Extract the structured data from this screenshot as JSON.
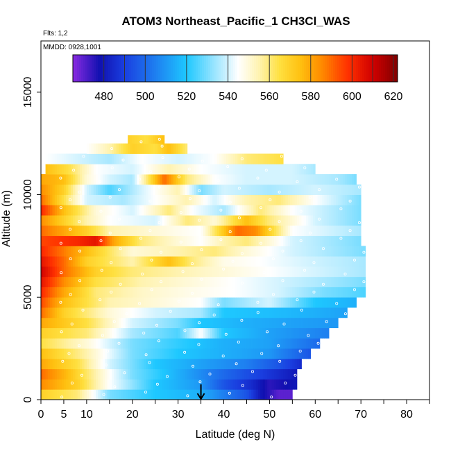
{
  "chart_data": {
    "type": "heatmap",
    "title": "ATOM3 Northeast_Pacific_1 CH3Cl_WAS",
    "annotations": {
      "flights": "Flts: 1,2",
      "dates": "MMDD: 0928,1001"
    },
    "xlabel": "Latitude (deg N)",
    "ylabel": "Altitude (m)",
    "xlim": [
      0,
      85
    ],
    "ylim": [
      0,
      17500
    ],
    "x_ticks": [
      0,
      5,
      10,
      20,
      30,
      40,
      50,
      60,
      70,
      80
    ],
    "x_minor_ticks": [
      15,
      25,
      35,
      45,
      55,
      65,
      75,
      85
    ],
    "y_ticks": [
      0,
      5000,
      10000,
      15000
    ],
    "colorbar": {
      "range": [
        465,
        622
      ],
      "ticks": [
        480,
        500,
        520,
        540,
        560,
        580,
        600,
        620
      ],
      "divisions": [
        465,
        480,
        490,
        500,
        520,
        540,
        560,
        580,
        600,
        610,
        620
      ],
      "colors": [
        {
          "v": 465,
          "c": "#8a2be2"
        },
        {
          "v": 478,
          "c": "#1010b0"
        },
        {
          "v": 490,
          "c": "#1a3fe0"
        },
        {
          "v": 505,
          "c": "#1e7ff0"
        },
        {
          "v": 520,
          "c": "#1ec8ff"
        },
        {
          "v": 535,
          "c": "#a8e8ff"
        },
        {
          "v": 545,
          "c": "#ffffff"
        },
        {
          "v": 555,
          "c": "#fff3b0"
        },
        {
          "v": 565,
          "c": "#ffe040"
        },
        {
          "v": 575,
          "c": "#ffc010"
        },
        {
          "v": 585,
          "c": "#ff8c00"
        },
        {
          "v": 598,
          "c": "#ff3000"
        },
        {
          "v": 610,
          "c": "#d00000"
        },
        {
          "v": 622,
          "c": "#800000"
        }
      ]
    },
    "marker": {
      "latitude": 35,
      "altitude": 0,
      "symbol": "down-arrow"
    },
    "layers": [
      {
        "y0": 0,
        "y1": 500,
        "lat": [
          0,
          55
        ],
        "points": [
          [
            0,
            570
          ],
          [
            8,
            560
          ],
          [
            15,
            530
          ],
          [
            25,
            520
          ],
          [
            35,
            515
          ],
          [
            40,
            505
          ],
          [
            45,
            495
          ],
          [
            48,
            480
          ],
          [
            52,
            470
          ],
          [
            55,
            470
          ]
        ]
      },
      {
        "y0": 500,
        "y1": 1000,
        "lat": [
          0,
          56
        ],
        "points": [
          [
            0,
            585
          ],
          [
            8,
            570
          ],
          [
            15,
            545
          ],
          [
            25,
            520
          ],
          [
            35,
            510
          ],
          [
            40,
            495
          ],
          [
            46,
            485
          ],
          [
            50,
            475
          ],
          [
            56,
            480
          ]
        ]
      },
      {
        "y0": 1000,
        "y1": 1500,
        "lat": [
          0,
          56
        ],
        "points": [
          [
            0,
            590
          ],
          [
            6,
            575
          ],
          [
            12,
            555
          ],
          [
            20,
            530
          ],
          [
            30,
            515
          ],
          [
            40,
            500
          ],
          [
            48,
            490
          ],
          [
            56,
            480
          ]
        ]
      },
      {
        "y0": 1500,
        "y1": 2000,
        "lat": [
          0,
          57
        ],
        "points": [
          [
            0,
            580
          ],
          [
            8,
            565
          ],
          [
            15,
            540
          ],
          [
            25,
            520
          ],
          [
            35,
            512
          ],
          [
            45,
            505
          ],
          [
            52,
            495
          ],
          [
            57,
            485
          ]
        ]
      },
      {
        "y0": 2000,
        "y1": 2500,
        "lat": [
          0,
          59
        ],
        "points": [
          [
            0,
            575
          ],
          [
            10,
            555
          ],
          [
            20,
            530
          ],
          [
            30,
            520
          ],
          [
            40,
            515
          ],
          [
            50,
            510
          ],
          [
            59,
            495
          ]
        ]
      },
      {
        "y0": 2500,
        "y1": 3000,
        "lat": [
          0,
          61
        ],
        "points": [
          [
            0,
            565
          ],
          [
            10,
            550
          ],
          [
            20,
            530
          ],
          [
            30,
            522
          ],
          [
            40,
            515
          ],
          [
            50,
            512
          ],
          [
            61,
            500
          ]
        ]
      },
      {
        "y0": 3000,
        "y1": 3500,
        "lat": [
          0,
          63
        ],
        "points": [
          [
            0,
            570
          ],
          [
            10,
            560
          ],
          [
            20,
            535
          ],
          [
            30,
            525
          ],
          [
            35,
            545
          ],
          [
            40,
            520
          ],
          [
            50,
            512
          ],
          [
            63,
            505
          ]
        ]
      },
      {
        "y0": 3500,
        "y1": 4000,
        "lat": [
          0,
          65
        ],
        "points": [
          [
            0,
            580
          ],
          [
            10,
            565
          ],
          [
            20,
            540
          ],
          [
            30,
            530
          ],
          [
            35,
            520
          ],
          [
            45,
            515
          ],
          [
            55,
            512
          ],
          [
            65,
            510
          ]
        ]
      },
      {
        "y0": 4000,
        "y1": 4500,
        "lat": [
          0,
          67
        ],
        "points": [
          [
            0,
            590
          ],
          [
            5,
            570
          ],
          [
            15,
            550
          ],
          [
            25,
            540
          ],
          [
            35,
            535
          ],
          [
            40,
            520
          ],
          [
            50,
            518
          ],
          [
            60,
            515
          ],
          [
            67,
            512
          ]
        ]
      },
      {
        "y0": 4500,
        "y1": 5000,
        "lat": [
          0,
          69
        ],
        "points": [
          [
            0,
            595
          ],
          [
            5,
            575
          ],
          [
            15,
            555
          ],
          [
            25,
            550
          ],
          [
            35,
            545
          ],
          [
            40,
            530
          ],
          [
            50,
            540
          ],
          [
            60,
            520
          ],
          [
            69,
            515
          ]
        ]
      },
      {
        "y0": 5000,
        "y1": 5500,
        "lat": [
          0,
          71
        ],
        "points": [
          [
            0,
            600
          ],
          [
            5,
            580
          ],
          [
            12,
            560
          ],
          [
            22,
            552
          ],
          [
            32,
            548
          ],
          [
            42,
            545
          ],
          [
            52,
            540
          ],
          [
            62,
            530
          ],
          [
            71,
            525
          ]
        ]
      },
      {
        "y0": 5500,
        "y1": 6000,
        "lat": [
          0,
          71
        ],
        "points": [
          [
            0,
            605
          ],
          [
            5,
            585
          ],
          [
            12,
            565
          ],
          [
            22,
            555
          ],
          [
            32,
            550
          ],
          [
            42,
            545
          ],
          [
            52,
            540
          ],
          [
            62,
            535
          ],
          [
            71,
            530
          ]
        ]
      },
      {
        "y0": 6000,
        "y1": 6500,
        "lat": [
          0,
          71
        ],
        "points": [
          [
            0,
            610
          ],
          [
            5,
            590
          ],
          [
            12,
            570
          ],
          [
            20,
            560
          ],
          [
            30,
            555
          ],
          [
            40,
            550
          ],
          [
            50,
            545
          ],
          [
            60,
            540
          ],
          [
            71,
            535
          ]
        ]
      },
      {
        "y0": 6500,
        "y1": 7000,
        "lat": [
          0,
          71
        ],
        "points": [
          [
            0,
            605
          ],
          [
            5,
            590
          ],
          [
            10,
            570
          ],
          [
            20,
            555
          ],
          [
            28,
            575
          ],
          [
            33,
            560
          ],
          [
            40,
            548
          ],
          [
            48,
            545
          ],
          [
            58,
            540
          ],
          [
            71,
            535
          ]
        ]
      },
      {
        "y0": 7000,
        "y1": 7500,
        "lat": [
          0,
          71
        ],
        "points": [
          [
            0,
            600
          ],
          [
            6,
            585
          ],
          [
            12,
            570
          ],
          [
            20,
            550
          ],
          [
            30,
            555
          ],
          [
            38,
            560
          ],
          [
            45,
            550
          ],
          [
            55,
            540
          ],
          [
            71,
            530
          ]
        ]
      },
      {
        "y0": 7500,
        "y1": 8000,
        "lat": [
          0,
          70
        ],
        "points": [
          [
            0,
            595
          ],
          [
            8,
            600
          ],
          [
            12,
            605
          ],
          [
            16,
            580
          ],
          [
            22,
            560
          ],
          [
            30,
            550
          ],
          [
            35,
            545
          ],
          [
            40,
            555
          ],
          [
            45,
            560
          ],
          [
            55,
            540
          ],
          [
            70,
            530
          ]
        ]
      },
      {
        "y0": 8000,
        "y1": 8500,
        "lat": [
          0,
          70
        ],
        "points": [
          [
            0,
            590
          ],
          [
            5,
            580
          ],
          [
            10,
            570
          ],
          [
            15,
            555
          ],
          [
            25,
            550
          ],
          [
            35,
            545
          ],
          [
            43,
            590
          ],
          [
            47,
            585
          ],
          [
            55,
            545
          ],
          [
            70,
            535
          ]
        ]
      },
      {
        "y0": 8500,
        "y1": 9000,
        "lat": [
          0,
          70
        ],
        "points": [
          [
            0,
            585
          ],
          [
            5,
            570
          ],
          [
            10,
            555
          ],
          [
            15,
            545
          ],
          [
            25,
            540
          ],
          [
            32,
            560
          ],
          [
            38,
            550
          ],
          [
            45,
            575
          ],
          [
            50,
            560
          ],
          [
            60,
            540
          ],
          [
            70,
            530
          ]
        ]
      },
      {
        "y0": 9000,
        "y1": 9500,
        "lat": [
          0,
          70
        ],
        "points": [
          [
            0,
            600
          ],
          [
            5,
            575
          ],
          [
            12,
            550
          ],
          [
            20,
            540
          ],
          [
            28,
            560
          ],
          [
            33,
            545
          ],
          [
            40,
            535
          ],
          [
            48,
            560
          ],
          [
            55,
            545
          ],
          [
            70,
            530
          ]
        ]
      },
      {
        "y0": 9500,
        "y1": 10000,
        "lat": [
          0,
          70
        ],
        "points": [
          [
            0,
            590
          ],
          [
            5,
            565
          ],
          [
            10,
            540
          ],
          [
            18,
            535
          ],
          [
            25,
            545
          ],
          [
            32,
            555
          ],
          [
            38,
            540
          ],
          [
            45,
            555
          ],
          [
            52,
            560
          ],
          [
            60,
            545
          ],
          [
            70,
            530
          ]
        ]
      },
      {
        "y0": 10000,
        "y1": 10500,
        "lat": [
          0,
          70
        ],
        "points": [
          [
            0,
            585
          ],
          [
            5,
            570
          ],
          [
            10,
            540
          ],
          [
            15,
            525
          ],
          [
            22,
            540
          ],
          [
            30,
            555
          ],
          [
            35,
            530
          ],
          [
            40,
            540
          ],
          [
            50,
            535
          ],
          [
            60,
            540
          ],
          [
            70,
            535
          ]
        ]
      },
      {
        "y0": 10500,
        "y1": 11000,
        "lat": [
          0,
          69
        ],
        "points": [
          [
            0,
            580
          ],
          [
            5,
            575
          ],
          [
            10,
            550
          ],
          [
            15,
            540
          ],
          [
            20,
            535
          ],
          [
            27,
            590
          ],
          [
            32,
            560
          ],
          [
            38,
            545
          ],
          [
            45,
            540
          ],
          [
            55,
            540
          ],
          [
            65,
            535
          ],
          [
            69,
            530
          ]
        ]
      },
      {
        "y0": 11000,
        "y1": 11500,
        "lat": [
          1,
          60
        ],
        "points": [
          [
            1,
            575
          ],
          [
            6,
            565
          ],
          [
            12,
            545
          ],
          [
            20,
            540
          ],
          [
            28,
            555
          ],
          [
            35,
            545
          ],
          [
            45,
            540
          ],
          [
            55,
            540
          ],
          [
            60,
            535
          ]
        ]
      },
      {
        "y0": 11500,
        "y1": 12000,
        "lat": [
          1,
          53
        ],
        "points": [
          [
            1,
            545
          ],
          [
            8,
            540
          ],
          [
            15,
            535
          ],
          [
            22,
            545
          ],
          [
            30,
            540
          ],
          [
            38,
            545
          ],
          [
            45,
            560
          ],
          [
            53,
            565
          ]
        ]
      },
      {
        "y0": 12000,
        "y1": 12500,
        "lat": [
          10,
          32
        ],
        "points": [
          [
            10,
            545
          ],
          [
            15,
            555
          ],
          [
            20,
            570
          ],
          [
            25,
            565
          ],
          [
            28,
            575
          ],
          [
            32,
            560
          ]
        ]
      },
      {
        "y0": 12500,
        "y1": 12900,
        "lat": [
          19,
          27
        ],
        "points": [
          [
            19,
            570
          ],
          [
            23,
            565
          ],
          [
            27,
            575
          ]
        ]
      }
    ]
  }
}
